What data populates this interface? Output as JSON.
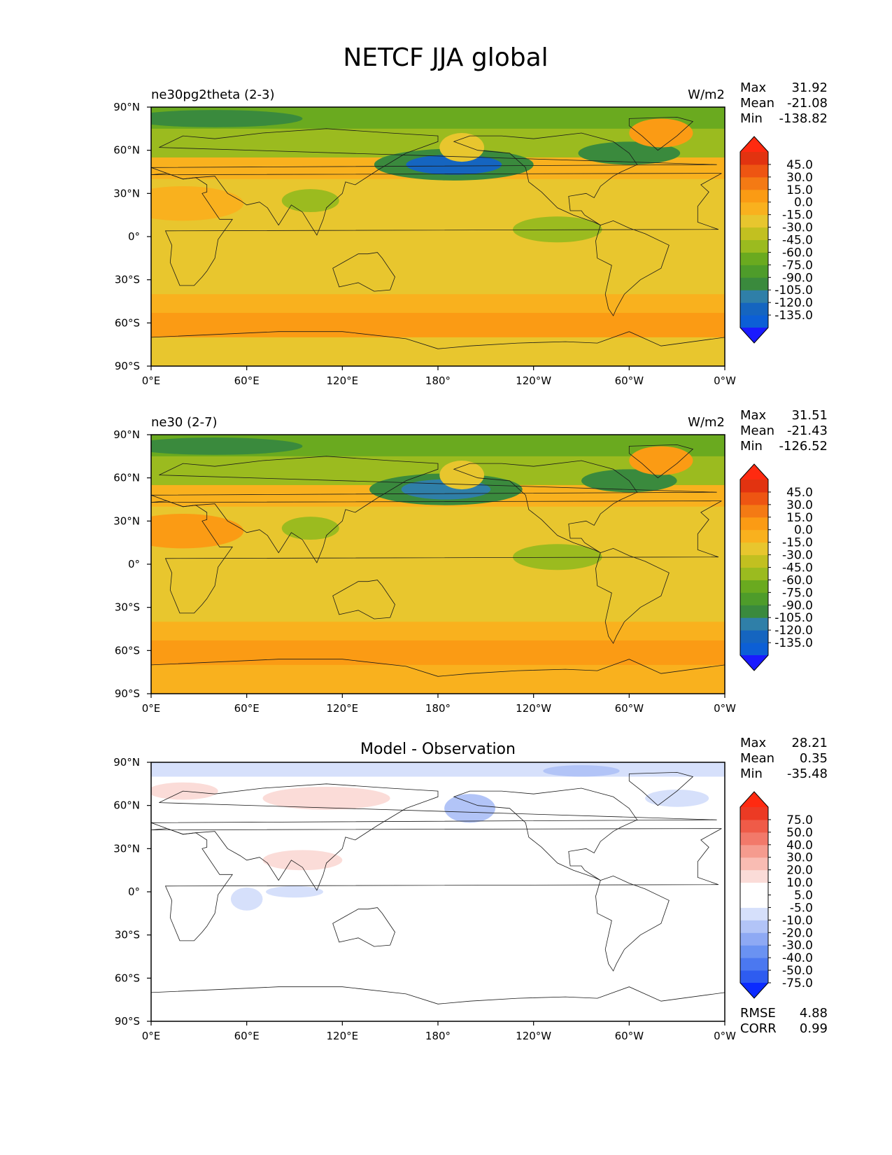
{
  "figure_title": "NETCF JJA global",
  "colors": {
    "field": [
      "#1a1aff",
      "#0c5fd6",
      "#1565c0",
      "#2f7fa8",
      "#3a8a3d",
      "#4e9c2a",
      "#6aaa1f",
      "#9bbb1f",
      "#c2c020",
      "#e8c62e",
      "#f9b11e",
      "#fb9b14",
      "#f47a14",
      "#ee5512",
      "#e23310",
      "#ff2a10"
    ],
    "diff": [
      "#0b2bff",
      "#2e5cf0",
      "#4b78f0",
      "#6a92f2",
      "#8ea9f4",
      "#b2c4f7",
      "#d6e0fb",
      "#ffffff",
      "#ffffff",
      "#fbdcd8",
      "#f9bcb3",
      "#f59b8e",
      "#f2796a",
      "#ef5b48",
      "#ec3a24",
      "#ff2a10"
    ]
  },
  "chart_data": [
    {
      "type": "heatmap",
      "title": "ne30pg2theta (2-3)",
      "units": "W/m2",
      "stats": {
        "max_label": "Max",
        "max": "31.92",
        "mean_label": "Mean",
        "mean": "-21.08",
        "min_label": "Min",
        "min": "-138.82"
      },
      "xticks": [
        "0°E",
        "60°E",
        "120°E",
        "180°",
        "120°W",
        "60°W",
        "0°W"
      ],
      "yticks": [
        "90°N",
        "60°N",
        "30°N",
        "0°",
        "30°S",
        "60°S",
        "90°S"
      ],
      "xlim": [
        0,
        360
      ],
      "ylim": [
        -90,
        90
      ],
      "colorbar_ticks": [
        "45.0",
        "30.0",
        "15.0",
        "0.0",
        "-15.0",
        "-30.0",
        "-45.0",
        "-60.0",
        "-75.0",
        "-90.0",
        "-105.0",
        "-120.0",
        "-135.0"
      ],
      "bands": [
        {
          "lat": [
            90,
            75
          ],
          "value": -75
        },
        {
          "lat": [
            75,
            55
          ],
          "value": -60
        },
        {
          "lat": [
            55,
            40
          ],
          "value": -15
        },
        {
          "lat": [
            40,
            -40
          ],
          "value": -30
        },
        {
          "lat": [
            -40,
            -53
          ],
          "value": -15
        },
        {
          "lat": [
            -53,
            -70
          ],
          "value": 10
        },
        {
          "lat": [
            -70,
            -90
          ],
          "value": -20
        }
      ],
      "blobs": [
        {
          "lon": 190,
          "lat": 50,
          "rlon": 50,
          "rlat": 11,
          "value": -100
        },
        {
          "lon": 190,
          "lat": 50,
          "rlon": 30,
          "rlat": 7,
          "value": -130
        },
        {
          "lon": 300,
          "lat": 58,
          "rlon": 32,
          "rlat": 8,
          "value": -105
        },
        {
          "lon": 40,
          "lat": 82,
          "rlon": 55,
          "rlat": 6,
          "value": -95
        },
        {
          "lon": 320,
          "lat": 72,
          "rlon": 20,
          "rlat": 10,
          "value": 5
        },
        {
          "lon": 20,
          "lat": 23,
          "rlon": 38,
          "rlat": 12,
          "value": -10
        },
        {
          "lon": 255,
          "lat": 5,
          "rlon": 28,
          "rlat": 9,
          "value": -55
        },
        {
          "lon": 100,
          "lat": 25,
          "rlon": 18,
          "rlat": 8,
          "value": -50
        },
        {
          "lon": 195,
          "lat": 62,
          "rlon": 14,
          "rlat": 10,
          "value": -30
        }
      ]
    },
    {
      "type": "heatmap",
      "title": "ne30 (2-7)",
      "units": "W/m2",
      "stats": {
        "max_label": "Max",
        "max": "31.51",
        "mean_label": "Mean",
        "mean": "-21.43",
        "min_label": "Min",
        "min": "-126.52"
      },
      "xticks": [
        "0°E",
        "60°E",
        "120°E",
        "180°",
        "120°W",
        "60°W",
        "0°W"
      ],
      "yticks": [
        "90°N",
        "60°N",
        "30°N",
        "0°",
        "30°S",
        "60°S",
        "90°S"
      ],
      "xlim": [
        0,
        360
      ],
      "ylim": [
        -90,
        90
      ],
      "colorbar_ticks": [
        "45.0",
        "30.0",
        "15.0",
        "0.0",
        "-15.0",
        "-30.0",
        "-45.0",
        "-60.0",
        "-75.0",
        "-90.0",
        "-105.0",
        "-120.0",
        "-135.0"
      ],
      "bands": [
        {
          "lat": [
            90,
            75
          ],
          "value": -70
        },
        {
          "lat": [
            75,
            55
          ],
          "value": -55
        },
        {
          "lat": [
            55,
            40
          ],
          "value": -15
        },
        {
          "lat": [
            40,
            -40
          ],
          "value": -25
        },
        {
          "lat": [
            -40,
            -53
          ],
          "value": -12
        },
        {
          "lat": [
            -53,
            -70
          ],
          "value": 12
        },
        {
          "lat": [
            -70,
            -90
          ],
          "value": -15
        }
      ],
      "blobs": [
        {
          "lon": 185,
          "lat": 52,
          "rlon": 48,
          "rlat": 11,
          "value": -95
        },
        {
          "lon": 185,
          "lat": 52,
          "rlon": 28,
          "rlat": 7,
          "value": -112
        },
        {
          "lon": 300,
          "lat": 58,
          "rlon": 30,
          "rlat": 8,
          "value": -100
        },
        {
          "lon": 40,
          "lat": 82,
          "rlon": 55,
          "rlat": 6,
          "value": -95
        },
        {
          "lon": 320,
          "lat": 72,
          "rlon": 20,
          "rlat": 10,
          "value": 5
        },
        {
          "lon": 20,
          "lat": 23,
          "rlon": 38,
          "rlat": 12,
          "value": 2
        },
        {
          "lon": 255,
          "lat": 5,
          "rlon": 28,
          "rlat": 9,
          "value": -55
        },
        {
          "lon": 100,
          "lat": 25,
          "rlon": 18,
          "rlat": 8,
          "value": -55
        },
        {
          "lon": 195,
          "lat": 62,
          "rlon": 14,
          "rlat": 10,
          "value": -30
        }
      ]
    },
    {
      "type": "heatmap",
      "title": "Model - Observation",
      "units": "",
      "stats": {
        "max_label": "Max",
        "max": "28.21",
        "mean_label": "Mean",
        "mean": "0.35",
        "min_label": "Min",
        "min": "-35.48"
      },
      "metrics": {
        "rmse_label": "RMSE",
        "rmse": "4.88",
        "corr_label": "CORR",
        "corr": "0.99"
      },
      "xticks": [
        "0°E",
        "60°E",
        "120°E",
        "180°",
        "120°W",
        "60°W",
        "0°W"
      ],
      "yticks": [
        "90°N",
        "60°N",
        "30°N",
        "0°",
        "30°S",
        "60°S",
        "90°S"
      ],
      "xlim": [
        0,
        360
      ],
      "ylim": [
        -90,
        90
      ],
      "colorbar_ticks": [
        "75.0",
        "50.0",
        "40.0",
        "30.0",
        "20.0",
        "10.0",
        "5.0",
        "-5.0",
        "-10.0",
        "-20.0",
        "-30.0",
        "-40.0",
        "-50.0",
        "-75.0"
      ],
      "bands": [
        {
          "lat": [
            90,
            80
          ],
          "value": -8
        },
        {
          "lat": [
            80,
            -90
          ],
          "value": 0
        }
      ],
      "blobs": [
        {
          "lon": 20,
          "lat": 70,
          "rlon": 22,
          "rlat": 6,
          "value": 12
        },
        {
          "lon": 110,
          "lat": 65,
          "rlon": 40,
          "rlat": 8,
          "value": 12
        },
        {
          "lon": 200,
          "lat": 58,
          "rlon": 16,
          "rlat": 10,
          "value": -12
        },
        {
          "lon": 255,
          "lat": 68,
          "rlon": 16,
          "rlat": 6,
          "value": 8
        },
        {
          "lon": 330,
          "lat": 65,
          "rlon": 20,
          "rlat": 6,
          "value": -8
        },
        {
          "lon": 270,
          "lat": 84,
          "rlon": 24,
          "rlat": 4,
          "value": -12
        },
        {
          "lon": 95,
          "lat": 22,
          "rlon": 25,
          "rlat": 7,
          "value": 12
        },
        {
          "lon": 90,
          "lat": 0,
          "rlon": 18,
          "rlat": 4,
          "value": -8
        },
        {
          "lon": 135,
          "lat": -5,
          "rlon": 16,
          "rlat": 4,
          "value": 8
        },
        {
          "lon": 305,
          "lat": 5,
          "rlon": 10,
          "rlat": 4,
          "value": 8
        },
        {
          "lon": 230,
          "lat": -63,
          "rlon": 25,
          "rlat": 3,
          "value": 8
        },
        {
          "lon": 60,
          "lat": -5,
          "rlon": 10,
          "rlat": 8,
          "value": -8
        }
      ]
    }
  ]
}
